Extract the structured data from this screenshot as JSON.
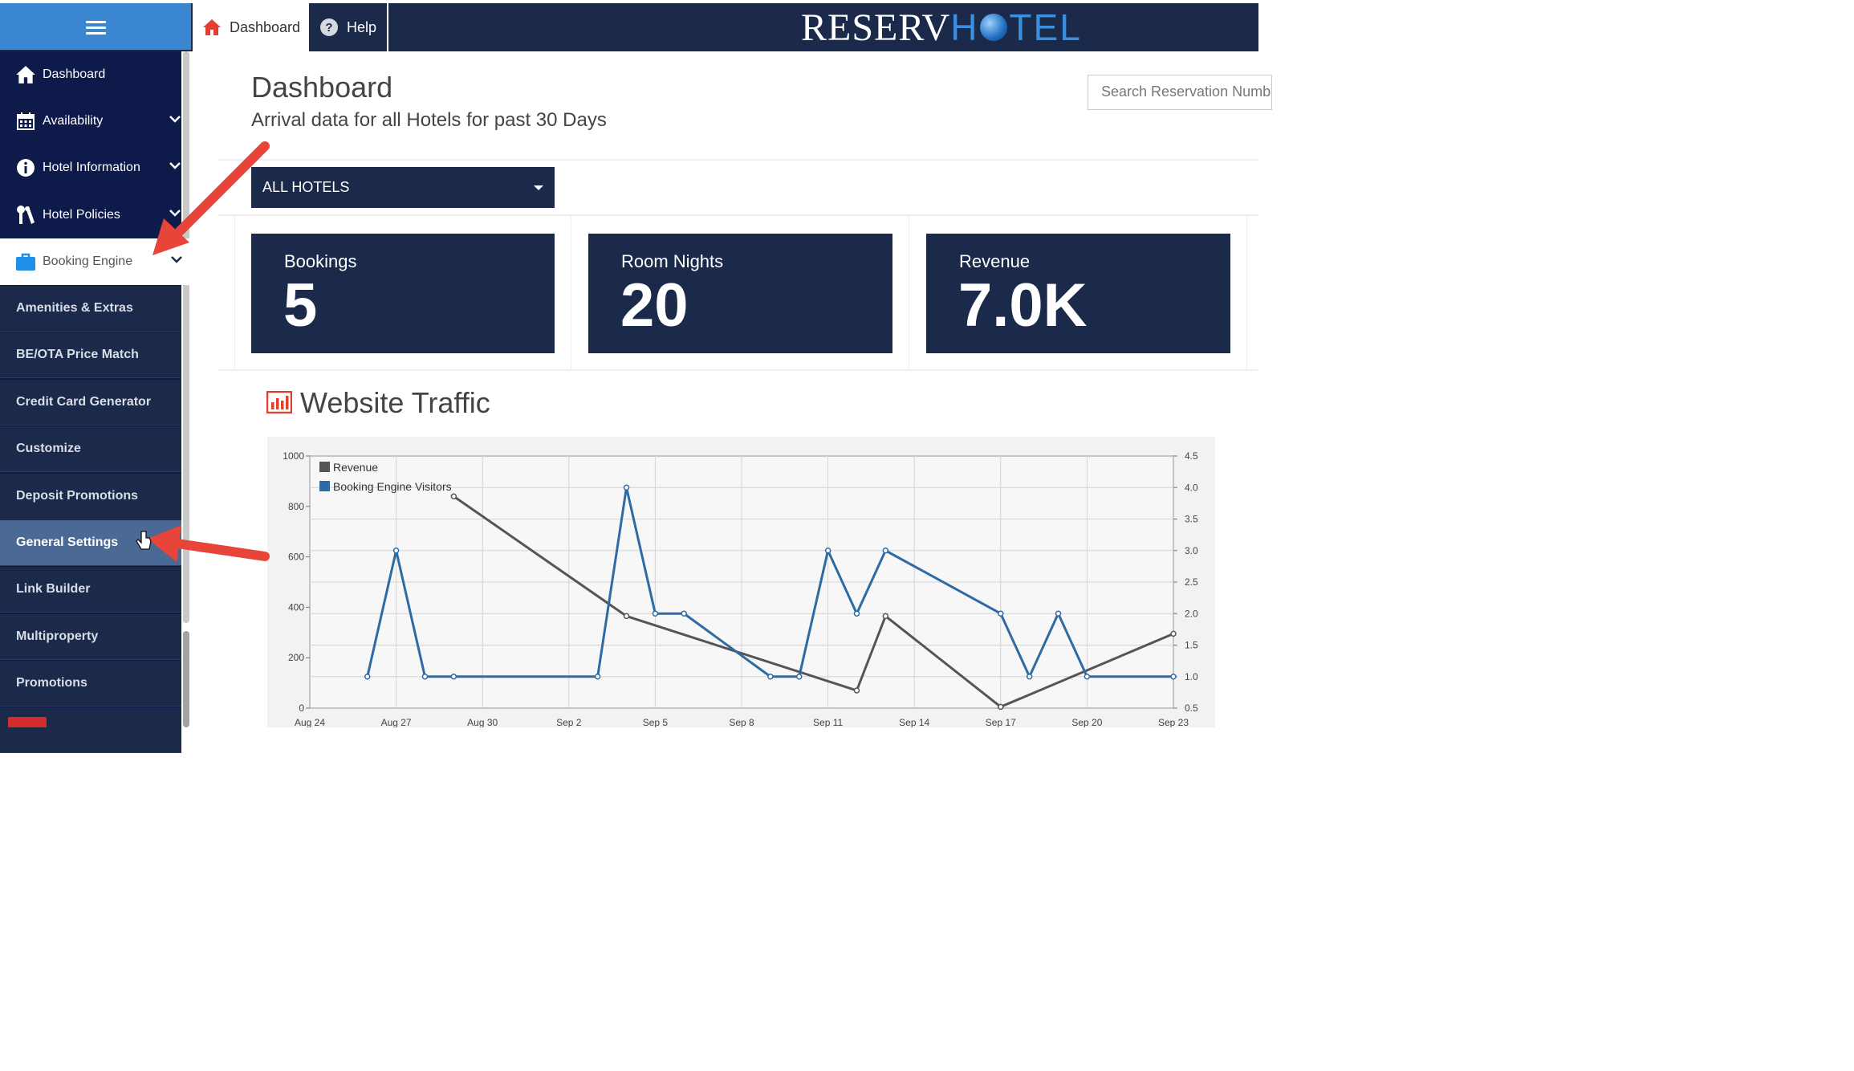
{
  "header": {
    "tabs": [
      {
        "label": "Dashboard",
        "icon": "home-icon",
        "active": true
      },
      {
        "label": "Help",
        "icon": "help-icon",
        "active": false
      }
    ],
    "logo": {
      "part1": "RESERV",
      "part2_before": "H",
      "part2_after": "TEL"
    }
  },
  "sidebar": {
    "items": [
      {
        "label": "Dashboard",
        "icon": "home-icon",
        "has_chevron": false
      },
      {
        "label": "Availability",
        "icon": "calendar-icon",
        "has_chevron": true
      },
      {
        "label": "Hotel Information",
        "icon": "info-icon",
        "has_chevron": true
      },
      {
        "label": "Hotel Policies",
        "icon": "keys-icon",
        "has_chevron": true
      },
      {
        "label": "Booking Engine",
        "icon": "briefcase-icon",
        "has_chevron": true,
        "active": true
      }
    ],
    "sub_items": [
      {
        "label": "Amenities & Extras"
      },
      {
        "label": "BE/OTA Price Match"
      },
      {
        "label": "Credit Card Generator"
      },
      {
        "label": "Customize"
      },
      {
        "label": "Deposit Promotions"
      },
      {
        "label": "General Settings",
        "selected": true
      },
      {
        "label": "Link Builder"
      },
      {
        "label": "Multiproperty"
      },
      {
        "label": "Promotions"
      }
    ]
  },
  "main": {
    "title": "Dashboard",
    "subtitle": "Arrival data for all Hotels for past 30 Days",
    "search_placeholder": "Search Reservation Number",
    "hotel_select": "ALL HOTELS",
    "stats": [
      {
        "label": "Bookings",
        "value": "5"
      },
      {
        "label": "Room Nights",
        "value": "20"
      },
      {
        "label": "Revenue",
        "value": "7.0K"
      }
    ],
    "section_title": "Website Traffic"
  },
  "colors": {
    "navy": "#1b2a4a",
    "sidebar_dark": "#0d1a4a",
    "accent_blue": "#3a86d1",
    "arrow_red": "#e8453a",
    "visitors_line": "#2e6aa3",
    "revenue_line": "#555555"
  },
  "chart_data": {
    "type": "line",
    "x": [
      "Aug 24",
      "Aug 25",
      "Aug 26",
      "Aug 27",
      "Aug 28",
      "Aug 29",
      "Aug 30",
      "Aug 31",
      "Sep 1",
      "Sep 2",
      "Sep 3",
      "Sep 4",
      "Sep 5",
      "Sep 6",
      "Sep 7",
      "Sep 8",
      "Sep 9",
      "Sep 10",
      "Sep 11",
      "Sep 12",
      "Sep 13",
      "Sep 14",
      "Sep 15",
      "Sep 16",
      "Sep 17",
      "Sep 18",
      "Sep 19",
      "Sep 20",
      "Sep 21",
      "Sep 22",
      "Sep 23"
    ],
    "xticks": [
      "Aug 24",
      "Aug 27",
      "Aug 30",
      "Sep 2",
      "Sep 5",
      "Sep 8",
      "Sep 11",
      "Sep 14",
      "Sep 17",
      "Sep 20",
      "Sep 23"
    ],
    "series": [
      {
        "name": "Revenue",
        "axis": "left",
        "color": "#555555",
        "points": [
          [
            "Aug 29",
            840
          ],
          [
            "Sep 4",
            365
          ],
          [
            "Sep 12",
            70
          ],
          [
            "Sep 13",
            365
          ],
          [
            "Sep 17",
            5
          ],
          [
            "Sep 23",
            295
          ]
        ]
      },
      {
        "name": "Booking Engine Visitors",
        "axis": "right",
        "color": "#2e6aa3",
        "points": [
          [
            "Aug 26",
            1.0
          ],
          [
            "Aug 27",
            3.0
          ],
          [
            "Aug 28",
            1.0
          ],
          [
            "Aug 29",
            1.0
          ],
          [
            "Sep 3",
            1.0
          ],
          [
            "Sep 4",
            4.0
          ],
          [
            "Sep 5",
            2.0
          ],
          [
            "Sep 6",
            2.0
          ],
          [
            "Sep 9",
            1.0
          ],
          [
            "Sep 10",
            1.0
          ],
          [
            "Sep 11",
            3.0
          ],
          [
            "Sep 12",
            2.0
          ],
          [
            "Sep 13",
            3.0
          ],
          [
            "Sep 17",
            2.0
          ],
          [
            "Sep 18",
            1.0
          ],
          [
            "Sep 19",
            2.0
          ],
          [
            "Sep 20",
            1.0
          ],
          [
            "Sep 23",
            1.0
          ]
        ]
      }
    ],
    "ylim_left": [
      0,
      1000
    ],
    "yticks_left": [
      0,
      200,
      400,
      600,
      800,
      1000
    ],
    "ylim_right": [
      0.5,
      4.5
    ],
    "yticks_right": [
      "0.5",
      "1.0",
      "1.5",
      "2.0",
      "2.5",
      "3.0",
      "3.5",
      "4.0",
      "4.5"
    ],
    "grid": true,
    "legend": "top-left"
  }
}
